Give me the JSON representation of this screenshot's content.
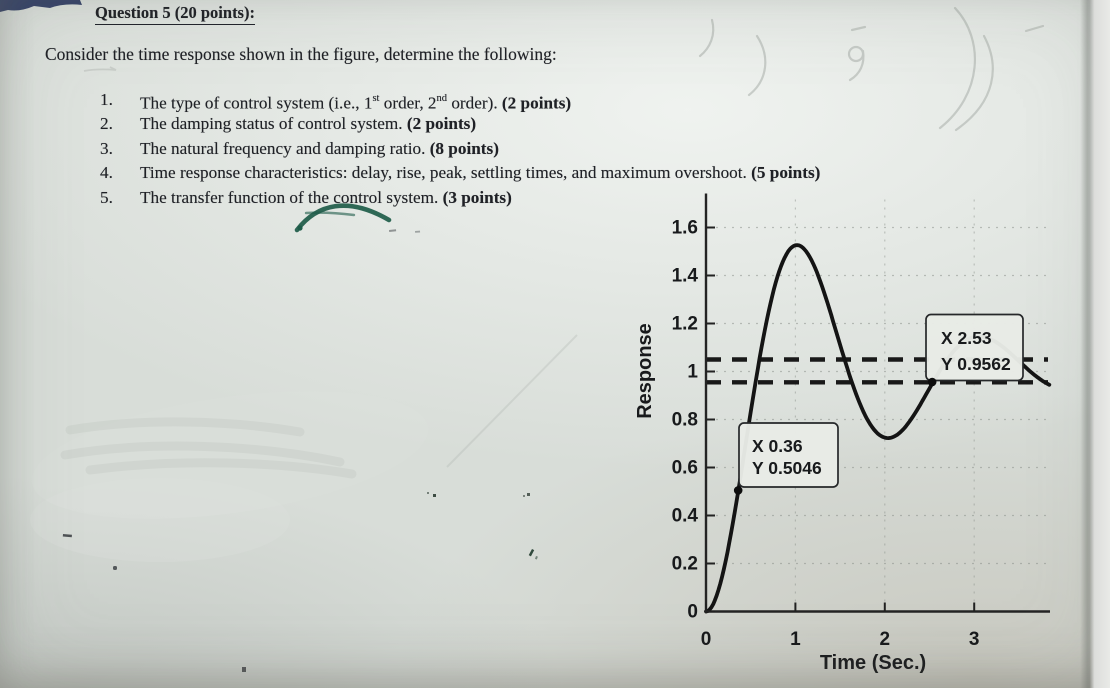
{
  "colors": {
    "paper": "#d8ddd8",
    "ink": "#1f2126",
    "chart_ink": "#151515",
    "pen_green": "#1e5c49",
    "corner_blue": "#2d3a63",
    "pencil_gray": "#a9afaa"
  },
  "document": {
    "title": "Question 5 (20 points):",
    "intro": "Consider the time response shown in the figure, determine the following:",
    "items": [
      {
        "num": "1.",
        "pre": "The type of control system (i.e., 1",
        "sup1": "st",
        "mid": " order, 2",
        "sup2": "nd",
        "post": " order). ",
        "points": "(2 points)"
      },
      {
        "num": "2.",
        "text": "The damping status of control system. ",
        "points": "(2 points)"
      },
      {
        "num": "3.",
        "text": "The natural frequency and damping ratio. ",
        "points": "(8 points)"
      },
      {
        "num": "4.",
        "text": "Time response characteristics: delay, rise, peak, settling times, and maximum overshoot. ",
        "points": "(5 points)"
      },
      {
        "num": "5.",
        "text": "The transfer function of the control system. ",
        "points": "(3 points)"
      }
    ]
  },
  "chart_data": {
    "type": "line",
    "title": "",
    "xlabel": "Time (Sec.)",
    "ylabel": "Response",
    "xlim": [
      0,
      3.85
    ],
    "ylim": [
      0,
      1.75
    ],
    "xticks": [
      0,
      1,
      2,
      3
    ],
    "yticks": [
      0,
      0.2,
      0.4,
      0.6,
      0.8,
      1.0,
      1.2,
      1.4,
      1.6
    ],
    "xtick_labels": [
      "0",
      "1",
      "2",
      "3"
    ],
    "ytick_labels": [
      "0",
      "0.2",
      "0.4",
      "0.6",
      "0.8",
      "1",
      "1.2",
      "1.4",
      "1.6"
    ],
    "grid": true,
    "settling_band": [
      1.05,
      0.955
    ],
    "curve_model": {
      "kind": "second_order_underdamped_step",
      "zeta": 0.2,
      "wn": 3.15,
      "t_end": 3.85
    },
    "key_points": {
      "peak": {
        "t": 1.02,
        "y": 1.53
      },
      "trough": {
        "t": 2.04,
        "y": 0.72
      },
      "final_value": 1.0
    },
    "datatips": [
      {
        "x": 0.36,
        "y": 0.5046,
        "line1": "X 0.36",
        "line2": "Y 0.5046"
      },
      {
        "x": 2.53,
        "y": 0.9562,
        "line1": "X 2.53",
        "line2": "Y 0.9562"
      }
    ]
  }
}
